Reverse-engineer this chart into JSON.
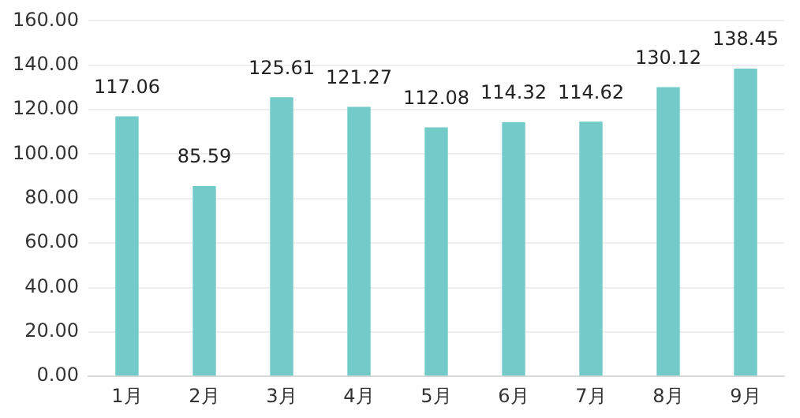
{
  "chart_data": {
    "type": "bar",
    "categories": [
      "1月",
      "2月",
      "3月",
      "4月",
      "5月",
      "6月",
      "7月",
      "8月",
      "9月"
    ],
    "values": [
      117.06,
      85.59,
      125.61,
      121.27,
      112.08,
      114.32,
      114.62,
      130.12,
      138.45
    ],
    "color": "#72cbc8",
    "ylim": [
      0,
      160
    ],
    "yticks": [
      {
        "value": 0,
        "label": "0.00"
      },
      {
        "value": 20,
        "label": "20.00"
      },
      {
        "value": 40,
        "label": "40.00"
      },
      {
        "value": 60,
        "label": "60.00"
      },
      {
        "value": 80,
        "label": "80.00"
      },
      {
        "value": 100,
        "label": "100.00"
      },
      {
        "value": 120,
        "label": "120.00"
      },
      {
        "value": 140,
        "label": "140.00"
      },
      {
        "value": 160,
        "label": "160.00"
      }
    ],
    "grid": "y",
    "data_labels": true
  }
}
